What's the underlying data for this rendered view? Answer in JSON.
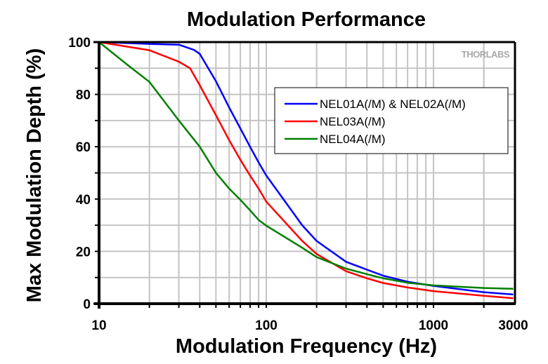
{
  "chart_data": {
    "type": "line",
    "title": "Modulation Performance",
    "xlabel": "Modulation Frequency (Hz)",
    "ylabel": "Max Modulation Depth (%)",
    "xscale": "log",
    "xlim": [
      10,
      3000
    ],
    "ylim": [
      0,
      100
    ],
    "xticks": [
      10,
      100,
      1000,
      3000
    ],
    "xtick_labels": [
      "10",
      "100",
      "1000",
      "3000"
    ],
    "yticks": [
      0,
      20,
      40,
      60,
      80,
      100
    ],
    "ytick_labels": [
      "0",
      "20",
      "40",
      "60",
      "80",
      "100"
    ],
    "grid": true,
    "legend_position": "top-right",
    "watermark": "THORLABS",
    "series": [
      {
        "name": "NEL01A(/M) & NEL02A(/M)",
        "color": "#0000ff",
        "x": [
          10,
          20,
          30,
          37,
          40,
          50,
          60,
          70,
          80,
          90,
          100,
          164,
          200,
          300,
          400,
          500,
          700,
          1000,
          2000,
          3000
        ],
        "y": [
          100,
          99.3,
          99,
          97,
          95.5,
          85,
          75,
          67,
          60,
          54,
          49,
          30,
          24,
          16,
          13,
          10.7,
          8.4,
          6.8,
          4.4,
          3.5
        ]
      },
      {
        "name": "NEL03A(/M)",
        "color": "#ff0000",
        "x": [
          10,
          20,
          30,
          35,
          40,
          50,
          60,
          70,
          80,
          90,
          100,
          164,
          200,
          300,
          400,
          500,
          700,
          1000,
          2000,
          3000
        ],
        "y": [
          100,
          96.9,
          92.5,
          90,
          83.5,
          72,
          62.5,
          55,
          49,
          44,
          39,
          24,
          19,
          12.4,
          9.7,
          7.9,
          6.2,
          4.8,
          3,
          2.1
        ]
      },
      {
        "name": "NEL04A(/M)",
        "color": "#008000",
        "x": [
          10,
          15,
          20,
          30,
          40,
          50,
          60,
          70,
          80,
          90,
          100,
          164,
          200,
          300,
          400,
          500,
          700,
          1000,
          2000,
          3000
        ],
        "y": [
          100,
          91,
          84.8,
          70,
          60,
          50,
          44,
          39.7,
          35.7,
          32,
          29.8,
          21.4,
          17.8,
          13.4,
          11.3,
          9.7,
          8,
          7,
          6,
          5.7
        ]
      }
    ]
  }
}
